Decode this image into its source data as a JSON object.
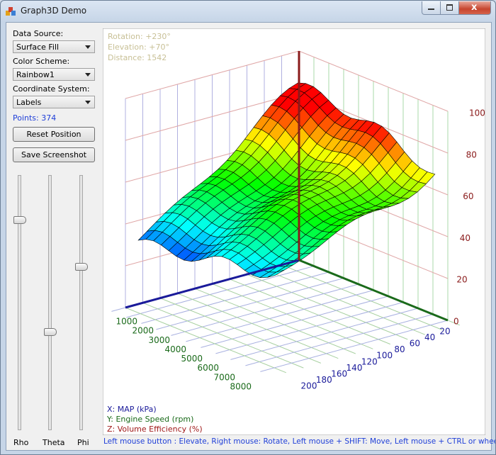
{
  "window": {
    "title": "Graph3D Demo"
  },
  "panel": {
    "data_source_label": "Data Source:",
    "data_source_value": "Surface Fill",
    "color_scheme_label": "Color Scheme:",
    "color_scheme_value": "Rainbow1",
    "coordinate_system_label": "Coordinate System:",
    "coordinate_system_value": "Labels",
    "points": "Points: 374",
    "reset_button": "Reset Position",
    "screenshot_button": "Save Screenshot",
    "sliders": [
      "Rho",
      "Theta",
      "Phi"
    ]
  },
  "graph": {
    "info": [
      "Rotation:  +230°",
      "Elevation: +70°",
      "Distance:  1542"
    ],
    "axis_legend": [
      "X: MAP (kPa)",
      "Y: Engine Speed (rpm)",
      "Z: Volume Efficiency (%)"
    ],
    "z_labels": [
      0,
      20,
      40,
      60,
      80,
      100
    ],
    "x_labels": [
      20,
      40,
      60,
      80,
      100,
      120,
      140,
      160,
      180,
      200
    ],
    "y_labels": [
      1000,
      2000,
      3000,
      4000,
      5000,
      6000,
      7000,
      8000
    ]
  },
  "status": "Left mouse button : Elevate,  Right mouse: Rotate,  Left mouse + SHIFT: Move,  Left mouse + CTRL or wheel: Zoom ..."
}
